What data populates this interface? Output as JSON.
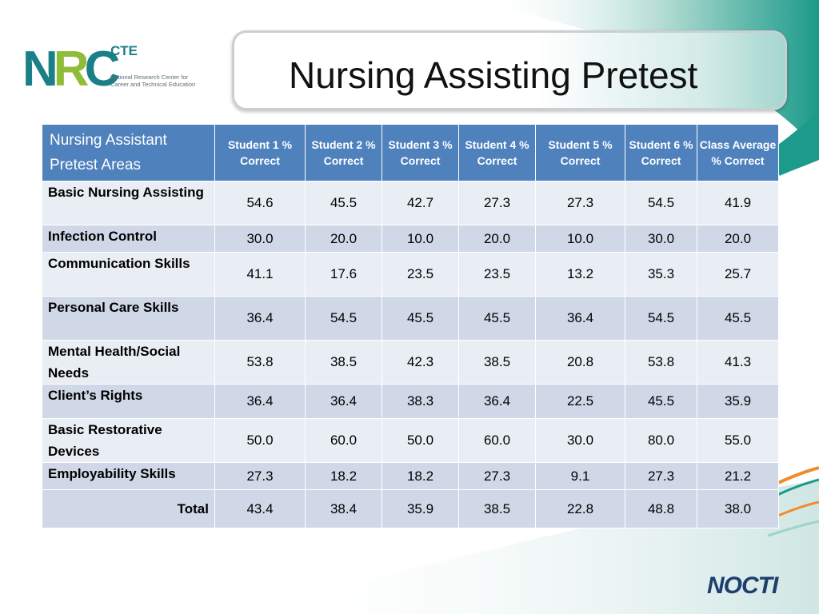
{
  "title": "Nursing Assisting Pretest",
  "logo": {
    "mark": "NRC",
    "cte": "CTE",
    "sub_line1": "National Research Center for",
    "sub_line2": "Career and Technical Education"
  },
  "footer_logo": "NOCTI",
  "table": {
    "headers": [
      "Nursing Assistant Pretest Areas",
      "Student 1 % Correct",
      "Student 2 % Correct",
      "Student 3 % Correct",
      "Student 4 % Correct",
      "Student 5 % Correct",
      "Student 6 % Correct",
      "Class Average % Correct"
    ],
    "rows": [
      {
        "area": "Basic Nursing Assisting",
        "values": [
          "54.6",
          "45.5",
          "42.7",
          "27.3",
          "27.3",
          "54.5",
          "41.9"
        ]
      },
      {
        "area": "Infection Control",
        "values": [
          "30.0",
          "20.0",
          "10.0",
          "20.0",
          "10.0",
          "30.0",
          "20.0"
        ]
      },
      {
        "area": "Communication Skills",
        "values": [
          "41.1",
          "17.6",
          "23.5",
          "23.5",
          "13.2",
          "35.3",
          "25.7"
        ]
      },
      {
        "area": "Personal Care Skills",
        "values": [
          "36.4",
          "54.5",
          "45.5",
          "45.5",
          "36.4",
          "54.5",
          "45.5"
        ]
      },
      {
        "area": "Mental Health/Social Needs",
        "values": [
          "53.8",
          "38.5",
          "42.3",
          "38.5",
          "20.8",
          "53.8",
          "41.3"
        ]
      },
      {
        "area": "Client’s Rights",
        "values": [
          "36.4",
          "36.4",
          "38.3",
          "36.4",
          "22.5",
          "45.5",
          "35.9"
        ]
      },
      {
        "area": "Basic Restorative Devices",
        "values": [
          "50.0",
          "60.0",
          "50.0",
          "60.0",
          "30.0",
          "80.0",
          "55.0"
        ]
      },
      {
        "area": "Employability Skills",
        "values": [
          "27.3",
          "18.2",
          "18.2",
          "27.3",
          "9.1",
          "27.3",
          "21.2"
        ]
      },
      {
        "area": "Total",
        "values": [
          "43.4",
          "38.4",
          "35.9",
          "38.5",
          "22.8",
          "48.8",
          "38.0"
        ]
      }
    ]
  },
  "colors": {
    "header_bg": "#4f81bd",
    "row_light": "#e9edf4",
    "row_dark": "#d0d8e8",
    "teal": "#1a7f86",
    "orange": "#f08a2c"
  }
}
